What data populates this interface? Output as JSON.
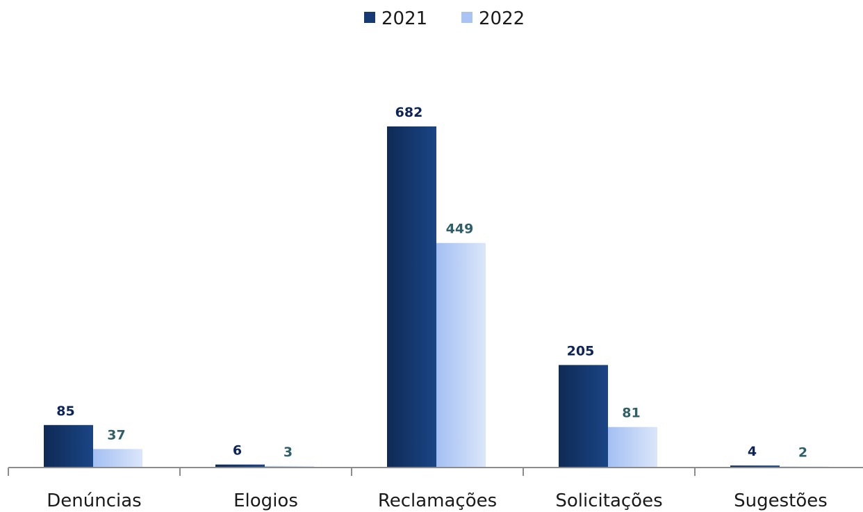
{
  "chart_data": {
    "type": "bar",
    "categories": [
      "Denúncias",
      "Elogios",
      "Reclamações",
      "Solicitações",
      "Sugestões"
    ],
    "series": [
      {
        "name": "2021",
        "values": [
          85,
          6,
          682,
          205,
          4
        ],
        "color": "#163a73",
        "label_color": "#0d2456"
      },
      {
        "name": "2022",
        "values": [
          37,
          3,
          449,
          81,
          2
        ],
        "color": "#a9c3f4",
        "label_color": "#2f5f68"
      }
    ],
    "legend_position": "top",
    "grid": false,
    "ylim": [
      0,
      682
    ]
  }
}
